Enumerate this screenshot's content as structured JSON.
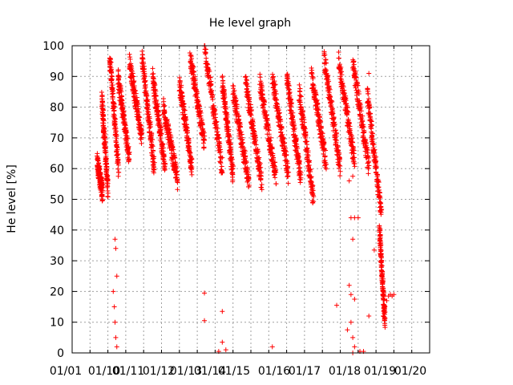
{
  "chart_data": {
    "type": "scatter",
    "title": "He level graph",
    "xlabel": "",
    "ylabel": "He level [%]",
    "ylim": [
      0,
      100
    ],
    "yticks": [
      0,
      10,
      20,
      30,
      40,
      50,
      60,
      70,
      80,
      90,
      100
    ],
    "xlim": [
      2010.0,
      2020.0
    ],
    "xtick_labels": [
      "01/01",
      "01/10",
      "01/11",
      "01/12",
      "01/13",
      "01/14",
      "01/15",
      "01/16",
      "01/17",
      "01/18",
      "01/19",
      "01/20"
    ],
    "xtick_values": [
      2010.0,
      2010.75,
      2011.0,
      2011.75,
      2012.0,
      2012.75,
      2013.0,
      2013.75,
      2014.0,
      2014.75,
      2015.0,
      2015.75
    ],
    "grid": true,
    "marker": "+",
    "marker_color": "#ff0000",
    "fill_cycles": [
      {
        "x0": 2010.7,
        "x1": 2010.85,
        "y0": 62,
        "y1": 52
      },
      {
        "x0": 2010.83,
        "x1": 2011.0,
        "y0": 83,
        "y1": 53
      },
      {
        "x0": 2011.05,
        "x1": 2011.3,
        "y0": 96,
        "y1": 60
      },
      {
        "x0": 2011.28,
        "x1": 2011.6,
        "y0": 90,
        "y1": 63
      },
      {
        "x0": 2011.6,
        "x1": 2011.95,
        "y0": 95,
        "y1": 70
      },
      {
        "x0": 2011.95,
        "x1": 2012.3,
        "y0": 97,
        "y1": 60
      },
      {
        "x0": 2012.25,
        "x1": 2012.6,
        "y0": 90,
        "y1": 60
      },
      {
        "x0": 2012.55,
        "x1": 2012.95,
        "y0": 80,
        "y1": 56
      },
      {
        "x0": 2013.0,
        "x1": 2013.35,
        "y0": 88,
        "y1": 60
      },
      {
        "x0": 2013.3,
        "x1": 2013.7,
        "y0": 96,
        "y1": 68
      },
      {
        "x0": 2013.7,
        "x1": 2014.2,
        "y0": 100,
        "y1": 60
      },
      {
        "x0": 2014.2,
        "x1": 2014.5,
        "y0": 88,
        "y1": 58
      },
      {
        "x0": 2014.5,
        "x1": 2014.95,
        "y0": 85,
        "y1": 55
      },
      {
        "x0": 2014.85,
        "x1": 2015.3,
        "y0": 88,
        "y1": 56
      },
      {
        "x0": 2015.25,
        "x1": 2015.7,
        "y0": 88,
        "y1": 57
      },
      {
        "x0": 2015.6,
        "x1": 2016.05,
        "y0": 90,
        "y1": 58
      },
      {
        "x0": 2016.0,
        "x1": 2016.4,
        "y0": 90,
        "y1": 56
      },
      {
        "x0": 2016.35,
        "x1": 2016.75,
        "y0": 85,
        "y1": 50
      },
      {
        "x0": 2016.7,
        "x1": 2017.1,
        "y0": 90,
        "y1": 62
      },
      {
        "x0": 2017.05,
        "x1": 2017.5,
        "y0": 96,
        "y1": 60
      },
      {
        "x0": 2017.45,
        "x1": 2017.9,
        "y0": 95,
        "y1": 62
      },
      {
        "x0": 2017.85,
        "x1": 2018.3,
        "y0": 95,
        "y1": 60
      },
      {
        "x0": 2018.25,
        "x1": 2018.65,
        "y0": 85,
        "y1": 45
      },
      {
        "x0": 2018.6,
        "x1": 2018.75,
        "y0": 40,
        "y1": 10
      }
    ],
    "outliers": [
      {
        "x": 2011.2,
        "y": 37
      },
      {
        "x": 2011.22,
        "y": 34
      },
      {
        "x": 2011.25,
        "y": 25
      },
      {
        "x": 2011.15,
        "y": 20
      },
      {
        "x": 2011.18,
        "y": 15
      },
      {
        "x": 2011.2,
        "y": 10
      },
      {
        "x": 2011.22,
        "y": 5
      },
      {
        "x": 2011.25,
        "y": 2
      },
      {
        "x": 2013.7,
        "y": 19.5
      },
      {
        "x": 2013.7,
        "y": 10.5
      },
      {
        "x": 2014.2,
        "y": 13.5
      },
      {
        "x": 2014.2,
        "y": 3.5
      },
      {
        "x": 2014.3,
        "y": 1
      },
      {
        "x": 2014.1,
        "y": 0.5
      },
      {
        "x": 2015.6,
        "y": 2
      },
      {
        "x": 2017.4,
        "y": 15.5
      },
      {
        "x": 2017.75,
        "y": 56
      },
      {
        "x": 2017.85,
        "y": 57.5
      },
      {
        "x": 2017.8,
        "y": 44
      },
      {
        "x": 2017.9,
        "y": 44
      },
      {
        "x": 2018.0,
        "y": 44
      },
      {
        "x": 2017.85,
        "y": 37
      },
      {
        "x": 2017.75,
        "y": 22
      },
      {
        "x": 2017.8,
        "y": 19
      },
      {
        "x": 2017.9,
        "y": 17.5
      },
      {
        "x": 2017.8,
        "y": 10
      },
      {
        "x": 2017.7,
        "y": 7.5
      },
      {
        "x": 2017.85,
        "y": 5
      },
      {
        "x": 2017.9,
        "y": 2
      },
      {
        "x": 2017.85,
        "y": 0
      },
      {
        "x": 2018.05,
        "y": 0.5
      },
      {
        "x": 2018.15,
        "y": 0.5
      },
      {
        "x": 2018.3,
        "y": 91
      },
      {
        "x": 2018.3,
        "y": 12
      },
      {
        "x": 2018.45,
        "y": 33.5
      },
      {
        "x": 2018.8,
        "y": 17
      },
      {
        "x": 2018.85,
        "y": 18.5
      },
      {
        "x": 2018.9,
        "y": 19
      },
      {
        "x": 2018.95,
        "y": 18.5
      },
      {
        "x": 2019.0,
        "y": 19
      },
      {
        "x": 2018.75,
        "y": 15
      },
      {
        "x": 2018.7,
        "y": 12
      }
    ]
  }
}
